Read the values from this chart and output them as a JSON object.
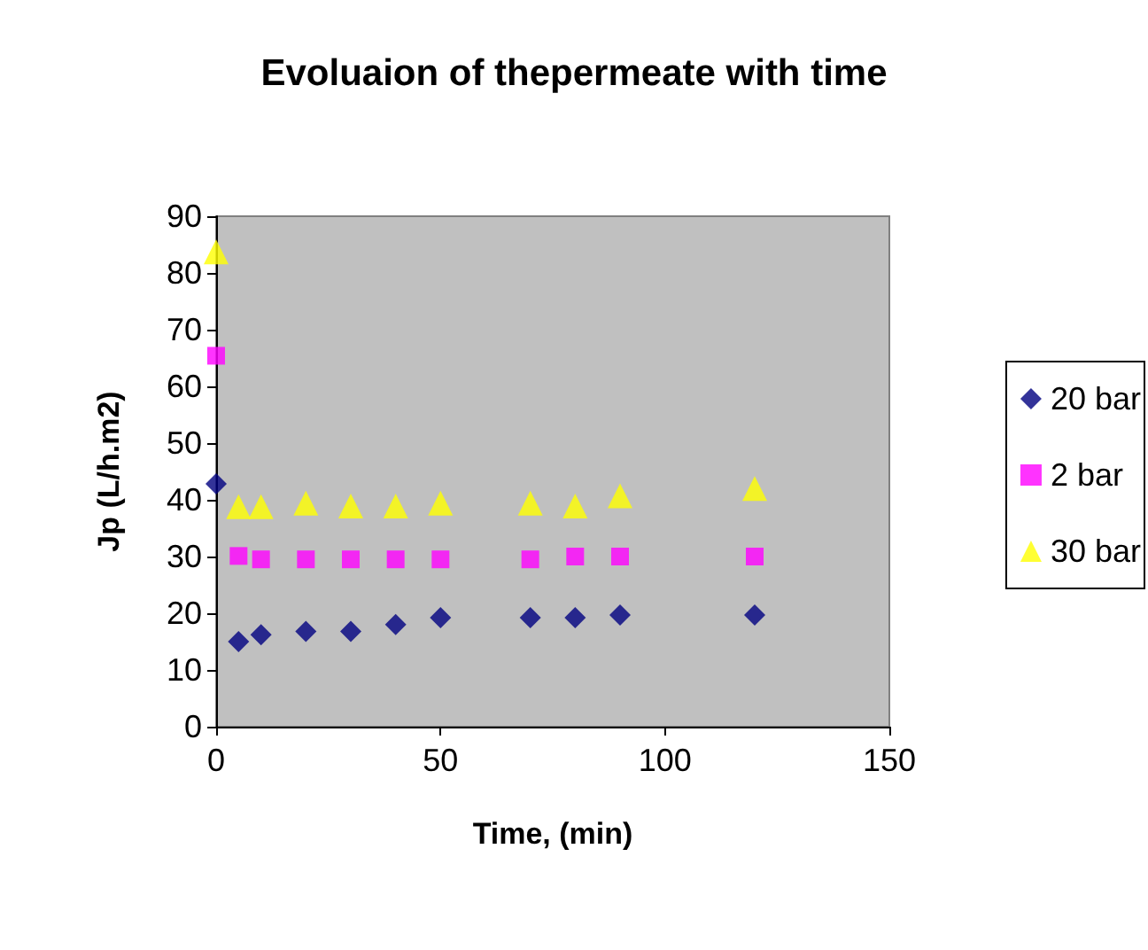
{
  "chart_data": {
    "type": "scatter",
    "title": "Evoluaion of thepermeate with time",
    "xlabel": "Time, (min)",
    "ylabel": "Jp (L/h.m2)",
    "x": [
      0,
      5,
      10,
      20,
      30,
      40,
      50,
      70,
      80,
      90,
      120
    ],
    "series": [
      {
        "name": "20 bar",
        "color": "#000080",
        "marker": "diamond",
        "values": [
          42.8,
          15,
          16.2,
          16.8,
          16.8,
          18,
          19.2,
          19.2,
          19.2,
          19.7,
          19.7
        ]
      },
      {
        "name": "2 bar",
        "color": "#ff00ff",
        "marker": "square",
        "values": [
          65.4,
          30.1,
          29.5,
          29.5,
          29.5,
          29.5,
          29.5,
          29.5,
          30,
          30,
          30
        ]
      },
      {
        "name": "30 bar",
        "color": "#ffff00",
        "marker": "triangle",
        "values": [
          83.7,
          38.8,
          38.8,
          39.4,
          38.9,
          38.9,
          39.4,
          39.4,
          38.9,
          40.7,
          42
        ]
      }
    ],
    "xlim": [
      0,
      150
    ],
    "xticks": [
      0,
      50,
      100,
      150
    ],
    "ylim": [
      0,
      90
    ],
    "yticks": [
      0,
      10,
      20,
      30,
      40,
      50,
      60,
      70,
      80,
      90
    ],
    "grid": false,
    "legend": "right"
  }
}
